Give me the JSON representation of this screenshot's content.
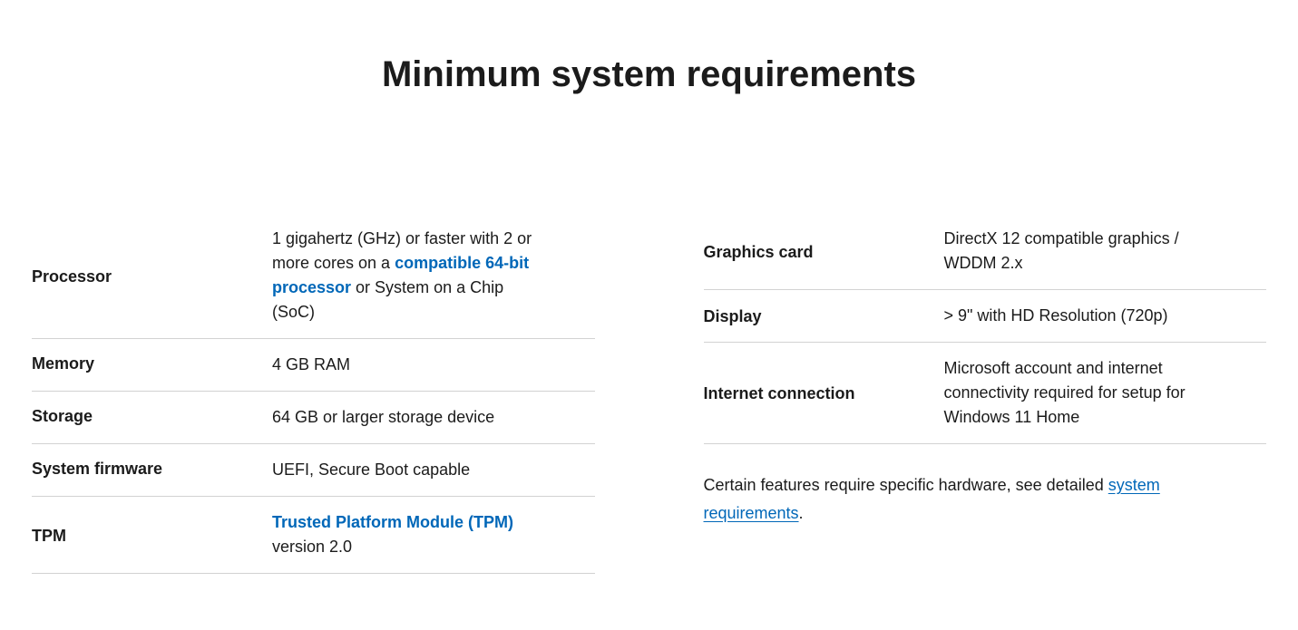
{
  "title": "Minimum system requirements",
  "link_color": "#0067b8",
  "text_color": "#1b1b1b",
  "border_color": "#d2d2d2",
  "left": {
    "processor": {
      "label": "Processor",
      "value_pre": "1 gigahertz (GHz) or faster with 2 or more cores on a ",
      "link": "compatible 64-bit processor",
      "value_post": " or System on a Chip (SoC)"
    },
    "memory": {
      "label": "Memory",
      "value": "4 GB RAM"
    },
    "storage": {
      "label": "Storage",
      "value": "64 GB or larger storage device"
    },
    "firmware": {
      "label": "System firmware",
      "value": "UEFI, Secure Boot capable"
    },
    "tpm": {
      "label": "TPM",
      "link": "Trusted Platform Module (TPM)",
      "value_post": " version 2.0"
    }
  },
  "right": {
    "graphics": {
      "label": "Graphics card",
      "value": "DirectX 12 compatible graphics / WDDM 2.x"
    },
    "display": {
      "label": "Display",
      "value": "> 9\" with HD Resolution (720p)"
    },
    "internet": {
      "label": "Internet connection",
      "value": "Microsoft account and internet connectivity required for setup for Windows 11 Home"
    }
  },
  "footer": {
    "text_pre": "Certain features require specific hardware, see detailed ",
    "link": "system requirements",
    "text_post": "."
  }
}
